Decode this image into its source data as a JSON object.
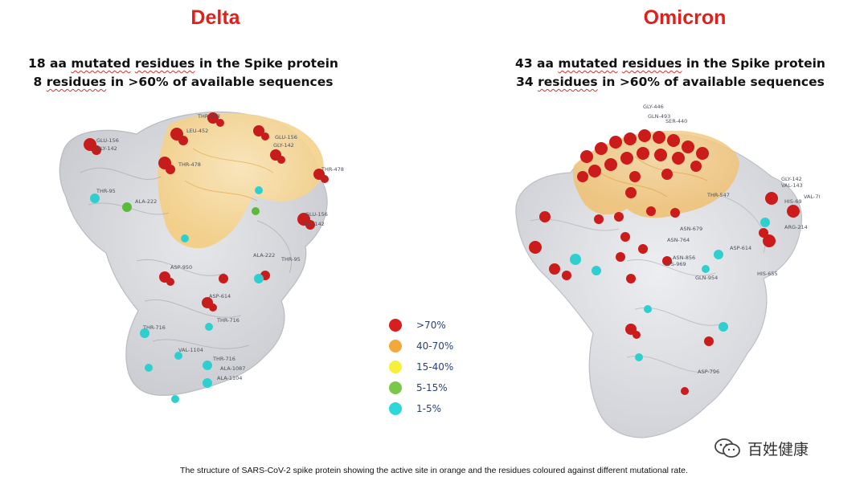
{
  "delta": {
    "title": "Delta",
    "stats": {
      "line1": {
        "number": "18",
        "aa": "aa",
        "w1": "mutated",
        "w2": "residues",
        "rest": "in the Spike protein"
      },
      "line2": {
        "number": "8",
        "w1": "residues",
        "rest": "in >60% of available sequences"
      }
    },
    "residue_labels": [
      "THR-478",
      "LEU-452",
      "GLU-156",
      "GLY-142",
      "THR-95",
      "ALA-222",
      "GLU-156",
      "GLY-142",
      "THR-478",
      "GLU-156",
      "GLY-142",
      "THR-478",
      "ALA-222",
      "ASP-950",
      "ASP-614",
      "THR-95",
      "THR-716",
      "THR-716",
      "VAL-1104",
      "ALA-1087",
      "THR-716",
      "ALA-1104"
    ]
  },
  "omicron": {
    "title": "Omicron",
    "stats": {
      "line1": {
        "number": "43",
        "aa": "aa",
        "w1": "mutated",
        "w2": "residues",
        "rest": "in the Spike protein"
      },
      "line2": {
        "number": "34",
        "w1": "residues",
        "rest": "in >60% of available sequences"
      }
    },
    "residue_labels": [
      "GLY-446",
      "GLN-493",
      "SER-440",
      "GLY-142",
      "VAL-143",
      "VAL-70",
      "HIS-69",
      "THR-547",
      "ARG-214",
      "ASN-679",
      "ASP-614",
      "HIS-655",
      "ASN-856",
      "GLN-954",
      "ASN-764",
      "LYS-969",
      "ASP-796"
    ]
  },
  "legend": [
    {
      "label": ">70%",
      "color": "#d81f1f"
    },
    {
      "label": "40-70%",
      "color": "#f2a93a"
    },
    {
      "label": "15-40%",
      "color": "#f7ef3a"
    },
    {
      "label": "5-15%",
      "color": "#78c84a"
    },
    {
      "label": "1-5%",
      "color": "#2ed8d8"
    }
  ],
  "caption": "The structure of SARS-CoV-2 spike protein showing the active site in orange and the residues coloured against different mutational rate.",
  "watermark": {
    "icon": "wechat-icon",
    "text": "百姓健康"
  }
}
